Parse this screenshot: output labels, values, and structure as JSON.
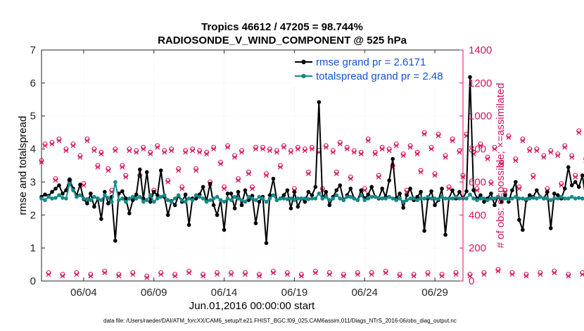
{
  "chart_data": {
    "type": "line",
    "title_line1": "Tropics 46612 / 47205 = 98.744%",
    "title_line2": "RADIOSONDE_V_WIND_COMPONENT @ 525 hPa",
    "xlabel": "Jun.01,2016 00:00:00 start",
    "ylabel_left": "rmse and totalspread",
    "ylabel_right": "# of obs: o=possible; ×=assimilated",
    "ylim_left": [
      0,
      7
    ],
    "ylim_right": [
      0,
      1400
    ],
    "xlim_days": [
      1.0,
      31.0
    ],
    "left_ticks": [
      "0",
      "1",
      "2",
      "3",
      "4",
      "5",
      "6",
      "7"
    ],
    "right_ticks": [
      "0",
      "200",
      "400",
      "600",
      "800",
      "1000",
      "1200",
      "1400"
    ],
    "x_ticks": [
      {
        "day": 4.0,
        "label": "06/04"
      },
      {
        "day": 9.0,
        "label": "06/09"
      },
      {
        "day": 14.0,
        "label": "06/14"
      },
      {
        "day": 19.0,
        "label": "06/19"
      },
      {
        "day": 24.0,
        "label": "06/24"
      },
      {
        "day": 29.0,
        "label": "06/29"
      }
    ],
    "x_start_day": 1.0,
    "x_step_day": 0.25,
    "series": [
      {
        "name": "rmse",
        "legend": "rmse grand pr = 2.6171",
        "color": "#000000",
        "axis": "left",
        "values": [
          2.55,
          2.62,
          2.58,
          2.7,
          2.8,
          2.9,
          2.65,
          2.75,
          3.08,
          2.8,
          2.6,
          2.92,
          2.48,
          2.35,
          2.65,
          2.25,
          2.5,
          1.88,
          2.7,
          2.35,
          2.55,
          1.22,
          2.65,
          2.72,
          2.5,
          2.05,
          2.45,
          2.62,
          3.38,
          2.5,
          3.3,
          2.4,
          2.7,
          2.6,
          3.35,
          2.55,
          2.0,
          2.42,
          2.3,
          2.58,
          2.4,
          2.62,
          1.7,
          2.5,
          2.5,
          2.62,
          2.85,
          2.42,
          2.95,
          2.3,
          2.0,
          2.45,
          1.55,
          2.65,
          2.65,
          2.2,
          2.7,
          2.3,
          2.75,
          2.45,
          2.58,
          1.75,
          2.4,
          2.55,
          1.15,
          2.6,
          3.1,
          2.45,
          2.5,
          2.6,
          2.75,
          2.2,
          2.7,
          2.25,
          2.5,
          2.4,
          2.7,
          2.6,
          2.85,
          5.42,
          2.5,
          2.7,
          2.3,
          2.55,
          2.75,
          2.9,
          2.45,
          2.6,
          2.8,
          2.5,
          2.45,
          2.75,
          2.5,
          2.62,
          2.85,
          2.55,
          2.5,
          2.8,
          2.55,
          3.05,
          3.7,
          2.5,
          2.65,
          2.22,
          2.6,
          2.8,
          2.45,
          2.55,
          2.7,
          1.52,
          2.5,
          2.72,
          2.3,
          2.45,
          2.8,
          1.4,
          2.5,
          2.75,
          2.5,
          2.7,
          2.5,
          2.72,
          6.18,
          2.75,
          2.5,
          2.6,
          2.4,
          2.5,
          2.65,
          2.3,
          2.55,
          2.4,
          2.6,
          2.4,
          2.75,
          3.0,
          1.85,
          1.55,
          2.45,
          2.6,
          2.55,
          2.75,
          2.55,
          2.5,
          2.7,
          1.6,
          2.65,
          2.6,
          2.5,
          2.8,
          3.45,
          2.9,
          3.0,
          2.85,
          3.2,
          2.5,
          2.7,
          2.45,
          2.6,
          2.4,
          2.75,
          2.6,
          2.65,
          2.55,
          2.68,
          2.5,
          2.55,
          2.6,
          2.4,
          2.5
        ]
      },
      {
        "name": "totalspread",
        "legend": "totalspread grand pr = 2.48",
        "color": "#138a8a",
        "axis": "left",
        "values": [
          2.5,
          2.45,
          2.55,
          2.5,
          2.52,
          2.6,
          2.52,
          2.5,
          2.95,
          2.75,
          2.55,
          2.6,
          2.5,
          2.48,
          2.45,
          2.55,
          2.5,
          2.45,
          2.6,
          2.52,
          2.4,
          3.0,
          2.45,
          2.5,
          2.4,
          2.5,
          2.55,
          2.5,
          2.55,
          2.4,
          2.45,
          2.6,
          2.4,
          2.5,
          2.55,
          2.6,
          2.45,
          2.4,
          2.5,
          2.6,
          2.45,
          2.4,
          2.5,
          2.45,
          2.6,
          2.55,
          2.5,
          2.4,
          2.45,
          2.5,
          2.55,
          2.45,
          2.4,
          2.5,
          2.45,
          2.55,
          2.5,
          2.45,
          2.4,
          2.55,
          2.5,
          2.45,
          2.55,
          2.5,
          2.4,
          2.5,
          2.6,
          2.45,
          2.5,
          2.5,
          2.48,
          2.5,
          2.45,
          2.5,
          2.5,
          2.5,
          2.48,
          2.5,
          2.5,
          2.65,
          2.5,
          2.55,
          2.45,
          2.5,
          2.6,
          2.5,
          2.45,
          2.55,
          2.55,
          2.5,
          2.45,
          2.6,
          2.45,
          2.5,
          2.55,
          2.55,
          2.52,
          2.5,
          2.5,
          2.55,
          2.5,
          2.45,
          2.5,
          2.4,
          2.45,
          2.5,
          2.5,
          2.45,
          2.5,
          2.5,
          2.55,
          2.5,
          2.5,
          2.48,
          2.55,
          2.5,
          2.5,
          2.5,
          2.55,
          2.5,
          2.5,
          2.5,
          2.62,
          2.5,
          2.45,
          2.5,
          2.5,
          2.45,
          2.5,
          2.5,
          2.55,
          2.5,
          2.5,
          2.48,
          2.5,
          2.55,
          2.5,
          2.5,
          2.48,
          2.5,
          2.52,
          2.5,
          2.55,
          2.5,
          2.5,
          2.45,
          2.5,
          2.5,
          2.55,
          2.5,
          2.5,
          2.55,
          2.5,
          2.52,
          2.5,
          2.5,
          2.48,
          2.5,
          2.5,
          2.55,
          2.5,
          2.5,
          2.5,
          2.48,
          2.5,
          2.5,
          2.55,
          2.5,
          2.5,
          2.5
        ]
      },
      {
        "name": "obs_possible",
        "color": "#d6125f",
        "axis": "right",
        "marker": "o",
        "values": [
          730,
          830,
          50,
          840,
          620,
          860,
          40,
          800,
          610,
          830,
          50,
          760,
          590,
          860,
          40,
          800,
          700,
          780,
          60,
          680,
          550,
          800,
          40,
          700,
          640,
          800,
          50,
          790,
          640,
          810,
          30,
          780,
          550,
          820,
          50,
          790,
          610,
          800,
          40,
          680,
          570,
          790,
          60,
          800,
          680,
          790,
          40,
          780,
          600,
          810,
          50,
          720,
          570,
          820,
          50,
          760,
          620,
          790,
          50,
          660,
          570,
          810,
          40,
          810,
          650,
          800,
          60,
          790,
          700,
          820,
          50,
          790,
          560,
          810,
          40,
          800,
          660,
          810,
          60,
          790,
          560,
          820,
          50,
          790,
          660,
          840,
          40,
          810,
          630,
          790,
          50,
          780,
          560,
          860,
          50,
          780,
          640,
          810,
          60,
          800,
          700,
          830,
          40,
          770,
          550,
          820,
          40,
          780,
          670,
          900,
          50,
          810,
          650,
          890,
          40,
          760,
          570,
          860,
          50,
          790,
          640,
          890,
          40,
          780,
          560,
          830,
          50,
          750,
          600,
          810,
          70,
          720,
          550,
          880,
          50,
          740,
          570,
          860,
          40,
          800,
          640,
          800,
          50,
          760,
          560,
          790,
          60,
          770,
          590,
          820,
          40,
          760,
          640,
          910,
          50,
          740,
          580,
          800,
          40,
          750,
          640,
          800,
          60,
          750,
          590,
          820,
          40,
          760,
          610,
          810,
          30,
          710
        ]
      },
      {
        "name": "obs_assimilated",
        "color": "#d6125f",
        "axis": "right",
        "marker": "x",
        "values": [
          720,
          820,
          40,
          830,
          610,
          850,
          30,
          790,
          600,
          820,
          40,
          750,
          580,
          850,
          30,
          790,
          690,
          770,
          50,
          670,
          540,
          790,
          30,
          690,
          630,
          790,
          40,
          780,
          630,
          800,
          20,
          770,
          540,
          810,
          40,
          780,
          600,
          790,
          30,
          670,
          560,
          780,
          50,
          790,
          670,
          780,
          30,
          770,
          590,
          800,
          40,
          710,
          560,
          810,
          40,
          750,
          610,
          780,
          40,
          650,
          560,
          800,
          30,
          800,
          640,
          790,
          50,
          780,
          690,
          810,
          40,
          780,
          550,
          800,
          30,
          790,
          650,
          800,
          50,
          780,
          550,
          810,
          40,
          780,
          650,
          830,
          30,
          800,
          620,
          780,
          40,
          770,
          550,
          850,
          40,
          770,
          630,
          800,
          50,
          790,
          690,
          820,
          30,
          760,
          540,
          810,
          30,
          770,
          660,
          890,
          40,
          800,
          640,
          880,
          30,
          750,
          560,
          850,
          40,
          780,
          630,
          880,
          30,
          770,
          550,
          820,
          40,
          740,
          590,
          800,
          60,
          710,
          540,
          870,
          40,
          730,
          560,
          850,
          30,
          790,
          630,
          790,
          40,
          750,
          550,
          780,
          50,
          760,
          580,
          810,
          30,
          750,
          630,
          900,
          40,
          730,
          570,
          790,
          30,
          740,
          630,
          790,
          50,
          740,
          580,
          810,
          30,
          750,
          600,
          800,
          20,
          700
        ]
      }
    ]
  },
  "footer": {
    "data_file": "data file: /Users/raeder/DAI/ATM_forcXX/CAM6_setup/f.e21.FHIST_BGC.f09_025.CAM6assim.011/Diags_NTrS_2016-06/obs_diag_output.nc"
  }
}
